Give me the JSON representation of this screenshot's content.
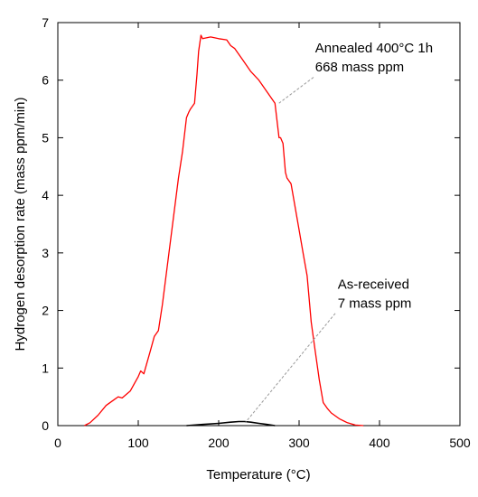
{
  "chart_data": {
    "type": "line",
    "xlabel": "Temperature (°C)",
    "ylabel": "Hydrogen desorption rate (mass ppm/min)",
    "xlim": [
      0,
      500
    ],
    "ylim": [
      0,
      7
    ],
    "x_ticks": [
      "0",
      "100",
      "200",
      "300",
      "400",
      "500"
    ],
    "y_ticks": [
      "0",
      "1",
      "2",
      "3",
      "4",
      "5",
      "6",
      "7"
    ],
    "grid": false,
    "series": [
      {
        "name": "Annealed 400°C 1h",
        "color": "#ff0000",
        "x": [
          33,
          40,
          50,
          60,
          70,
          75,
          80,
          90,
          100,
          103,
          107,
          110,
          115,
          120,
          125,
          130,
          140,
          150,
          155,
          160,
          163,
          165,
          170,
          173,
          175,
          178,
          180,
          190,
          200,
          210,
          215,
          220,
          230,
          240,
          250,
          260,
          270,
          275,
          277,
          280,
          283,
          285,
          290,
          300,
          305,
          310,
          315,
          320,
          325,
          330,
          335,
          340,
          350,
          360,
          370,
          380
        ],
        "y": [
          0.0,
          0.05,
          0.18,
          0.35,
          0.45,
          0.5,
          0.48,
          0.6,
          0.85,
          0.95,
          0.9,
          1.05,
          1.3,
          1.55,
          1.65,
          2.1,
          3.2,
          4.3,
          4.75,
          5.35,
          5.45,
          5.5,
          5.6,
          6.1,
          6.5,
          6.78,
          6.72,
          6.75,
          6.72,
          6.7,
          6.6,
          6.55,
          6.35,
          6.15,
          6.0,
          5.8,
          5.6,
          5.0,
          5.0,
          4.9,
          4.4,
          4.3,
          4.2,
          3.4,
          3.0,
          2.6,
          1.8,
          1.3,
          0.8,
          0.4,
          0.3,
          0.22,
          0.12,
          0.05,
          0.01,
          0.0
        ]
      },
      {
        "name": "As-received",
        "color": "#000000",
        "x": [
          160,
          180,
          200,
          215,
          225,
          232,
          240,
          250,
          260,
          270
        ],
        "y": [
          0.0,
          0.02,
          0.04,
          0.06,
          0.07,
          0.07,
          0.06,
          0.04,
          0.02,
          0.0
        ]
      }
    ],
    "annotations": [
      {
        "lines": [
          "Annealed 400°C 1h",
          "668 mass ppm"
        ],
        "arrow_to": [
          275,
          5.6
        ],
        "text_anchor_data": [
          318,
          6.05
        ],
        "label_pos": [
          320,
          6.48
        ]
      },
      {
        "lines": [
          "As-received",
          "7 mass ppm"
        ],
        "arrow_to": [
          233,
          0.05
        ],
        "text_anchor_data": [
          345,
          1.95
        ],
        "label_pos": [
          348,
          2.38
        ]
      }
    ]
  }
}
